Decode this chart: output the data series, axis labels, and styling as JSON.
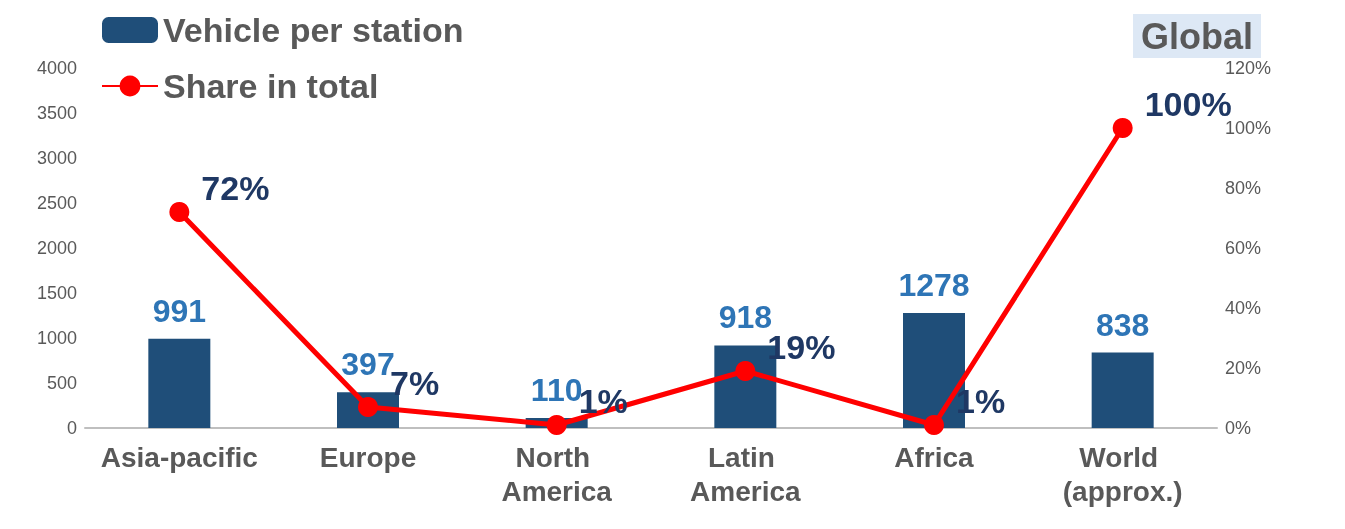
{
  "chart_data": {
    "type": "bar",
    "categories": [
      "Asia-pacific",
      "Europe",
      "North America",
      "Latin America",
      "Africa",
      "World (approx.)"
    ],
    "series": [
      {
        "name": "Vehicle per station",
        "color": "#1f4e79",
        "values": [
          991,
          397,
          110,
          918,
          1278,
          838
        ],
        "value_labels": [
          "991",
          "397",
          "110",
          "918",
          "1278",
          "838"
        ]
      },
      {
        "name": "Share in total",
        "type": "line",
        "axis": "y2",
        "color": "#ff0000",
        "values": [
          72,
          7,
          1,
          19,
          1,
          100
        ],
        "value_labels": [
          "72%",
          "7%",
          "1%",
          "19%",
          "1%",
          "100%"
        ]
      }
    ],
    "ylim": [
      0,
      4000
    ],
    "yticks": [
      0,
      500,
      1000,
      1500,
      2000,
      2500,
      3000,
      3500,
      4000
    ],
    "y2lim": [
      0,
      120
    ],
    "y2ticks": [
      {
        "value": 0,
        "label": "0%"
      },
      {
        "value": 20,
        "label": "20%"
      },
      {
        "value": 40,
        "label": "40%"
      },
      {
        "value": 60,
        "label": "60%"
      },
      {
        "value": 80,
        "label": "80%"
      },
      {
        "value": 100,
        "label": "100%"
      },
      {
        "value": 120,
        "label": "120%"
      }
    ],
    "annotations": [
      "Global"
    ],
    "legend": "top left",
    "grid": false,
    "marker": "circle",
    "line_style": "solid"
  }
}
